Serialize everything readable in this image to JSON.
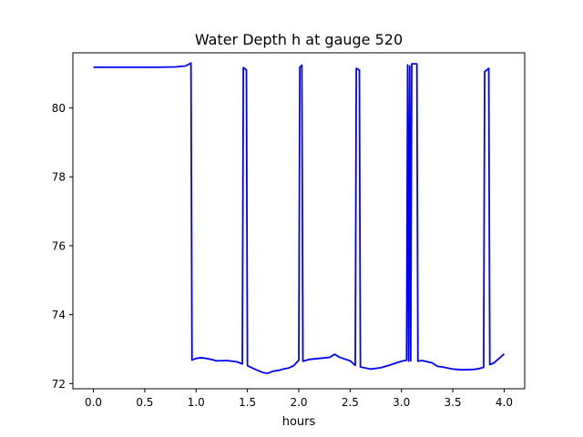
{
  "chart_data": {
    "type": "line",
    "title": "Water Depth h at gauge 520",
    "xlabel": "hours",
    "ylabel": "",
    "xlim": [
      -0.2,
      4.2
    ],
    "ylim": [
      71.85,
      81.6
    ],
    "xticks": [
      0.0,
      0.5,
      1.0,
      1.5,
      2.0,
      2.5,
      3.0,
      3.5,
      4.0
    ],
    "xtick_labels": [
      "0.0",
      "0.5",
      "1.0",
      "1.5",
      "2.0",
      "2.5",
      "3.0",
      "3.5",
      "4.0"
    ],
    "yticks": [
      72,
      74,
      76,
      78,
      80
    ],
    "ytick_labels": [
      "72",
      "74",
      "76",
      "78",
      "80"
    ],
    "grid": false,
    "legend": null,
    "series": [
      {
        "color": "#0000ff",
        "x": [
          0.0,
          0.3,
          0.6,
          0.8,
          0.9,
          0.95,
          0.96,
          1.0,
          1.05,
          1.1,
          1.15,
          1.2,
          1.3,
          1.4,
          1.45,
          1.46,
          1.49,
          1.5,
          1.55,
          1.6,
          1.65,
          1.7,
          1.75,
          1.8,
          1.85,
          1.9,
          1.95,
          2.0,
          2.01,
          2.03,
          2.04,
          2.1,
          2.2,
          2.3,
          2.35,
          2.4,
          2.5,
          2.55,
          2.56,
          2.59,
          2.6,
          2.65,
          2.7,
          2.8,
          2.9,
          3.0,
          3.05,
          3.06,
          3.07,
          3.08,
          3.09,
          3.1,
          3.15,
          3.16,
          3.2,
          3.3,
          3.35,
          3.4,
          3.5,
          3.6,
          3.7,
          3.75,
          3.8,
          3.81,
          3.85,
          3.86,
          3.9,
          4.0
        ],
        "y": [
          81.18,
          81.18,
          81.18,
          81.19,
          81.22,
          81.3,
          72.68,
          72.73,
          72.75,
          72.73,
          72.7,
          72.66,
          72.67,
          72.63,
          72.57,
          81.17,
          81.1,
          72.52,
          72.45,
          72.38,
          72.32,
          72.3,
          72.36,
          72.38,
          72.42,
          72.45,
          72.52,
          72.68,
          81.18,
          81.24,
          72.65,
          72.7,
          72.73,
          72.76,
          72.85,
          72.76,
          72.66,
          72.53,
          81.15,
          81.1,
          72.48,
          72.45,
          72.42,
          72.46,
          72.55,
          72.65,
          72.68,
          81.25,
          72.65,
          81.22,
          72.66,
          81.28,
          81.28,
          72.65,
          72.67,
          72.6,
          72.5,
          72.48,
          72.42,
          72.4,
          72.41,
          72.43,
          72.47,
          81.05,
          81.15,
          72.55,
          72.6,
          72.86
        ]
      }
    ]
  }
}
